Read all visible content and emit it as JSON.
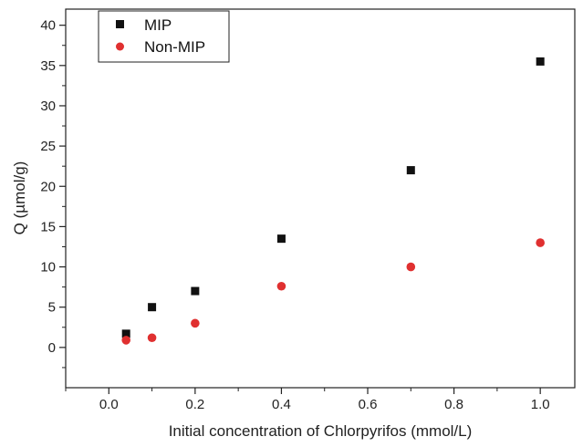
{
  "chart_data": {
    "type": "scatter",
    "title": "",
    "xlabel": "Initial concentration of Chlorpyrifos (mmol/L)",
    "ylabel": "Q (µmol/g)",
    "xlim": [
      -0.1,
      1.08
    ],
    "ylim": [
      -5,
      42
    ],
    "x_ticks": [
      "0.0",
      "0.2",
      "0.4",
      "0.6",
      "0.8",
      "1.0"
    ],
    "y_ticks": [
      "0",
      "5",
      "10",
      "15",
      "20",
      "25",
      "30",
      "35",
      "40"
    ],
    "grid": false,
    "legend_position": "top-left",
    "series": [
      {
        "name": "MIP",
        "marker": "square",
        "color": "#111111",
        "x": [
          0.04,
          0.1,
          0.2,
          0.4,
          0.7,
          1.0
        ],
        "y": [
          1.7,
          5.0,
          7.0,
          13.5,
          22.0,
          35.5
        ]
      },
      {
        "name": "Non-MIP",
        "marker": "circle",
        "color": "#e03030",
        "x": [
          0.04,
          0.1,
          0.2,
          0.4,
          0.7,
          1.0
        ],
        "y": [
          0.9,
          1.2,
          3.0,
          7.6,
          10.0,
          13.0
        ]
      }
    ]
  }
}
